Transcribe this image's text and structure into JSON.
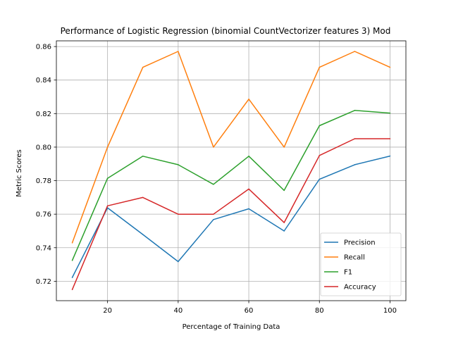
{
  "chart_data": {
    "type": "line",
    "title": "Performance of Logistic Regression (binomial CountVectorizer features 3) Mod",
    "xlabel": "Percentage of Training Data",
    "ylabel": "Metric Scores",
    "x": [
      10,
      20,
      30,
      40,
      50,
      60,
      70,
      80,
      90,
      100
    ],
    "xlim": [
      5.5,
      104.5
    ],
    "ylim": [
      0.7084,
      0.8634
    ],
    "xticks": [
      20,
      40,
      60,
      80,
      100
    ],
    "yticks": [
      0.72,
      0.74,
      0.76,
      0.78,
      0.8,
      0.82,
      0.84,
      0.86
    ],
    "ytick_labels": [
      "0.72",
      "0.74",
      "0.76",
      "0.78",
      "0.80",
      "0.82",
      "0.84",
      "0.86"
    ],
    "grid": true,
    "legend_position": "lower right",
    "series": [
      {
        "name": "Precision",
        "color": "#1f77b4",
        "values": [
          0.7222,
          0.7638,
          0.7479,
          0.7317,
          0.7568,
          0.7632,
          0.75,
          0.7808,
          0.7895,
          0.7947
        ]
      },
      {
        "name": "Recall",
        "color": "#ff7f0e",
        "values": [
          0.7429,
          0.8,
          0.8476,
          0.8571,
          0.8,
          0.8286,
          0.8,
          0.8476,
          0.8571,
          0.8476
        ]
      },
      {
        "name": "F1",
        "color": "#2ca02c",
        "values": [
          0.7324,
          0.7814,
          0.7946,
          0.7895,
          0.7778,
          0.7946,
          0.7742,
          0.8128,
          0.8219,
          0.8203
        ]
      },
      {
        "name": "Accuracy",
        "color": "#d62728",
        "values": [
          0.715,
          0.765,
          0.77,
          0.76,
          0.76,
          0.775,
          0.755,
          0.795,
          0.805,
          0.805
        ]
      }
    ]
  }
}
